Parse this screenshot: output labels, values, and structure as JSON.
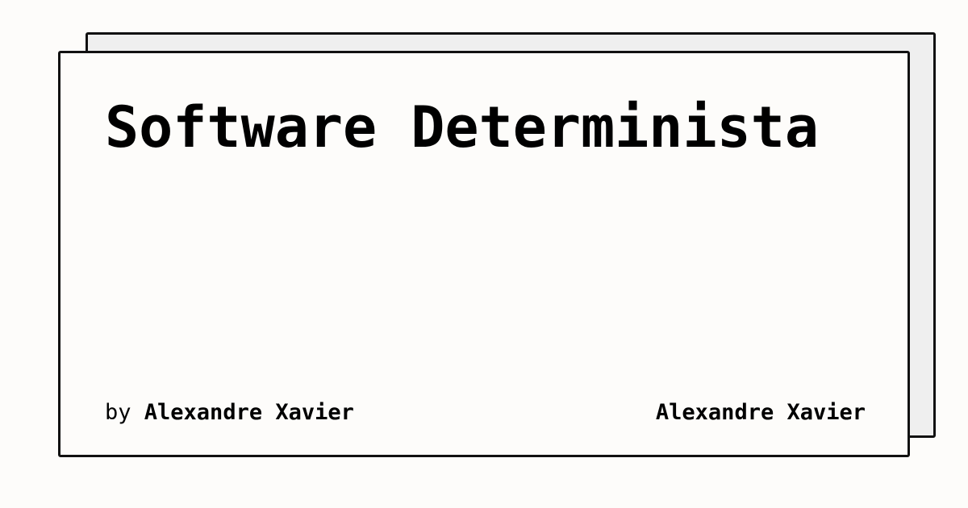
{
  "card": {
    "title": "Software Determinista",
    "byline_prefix": "by",
    "author": "Alexandre Xavier",
    "site_name": "Alexandre Xavier"
  },
  "colors": {
    "background": "#fdfcfa",
    "back_card": "#efefef",
    "border": "#111111",
    "text": "#000000"
  }
}
